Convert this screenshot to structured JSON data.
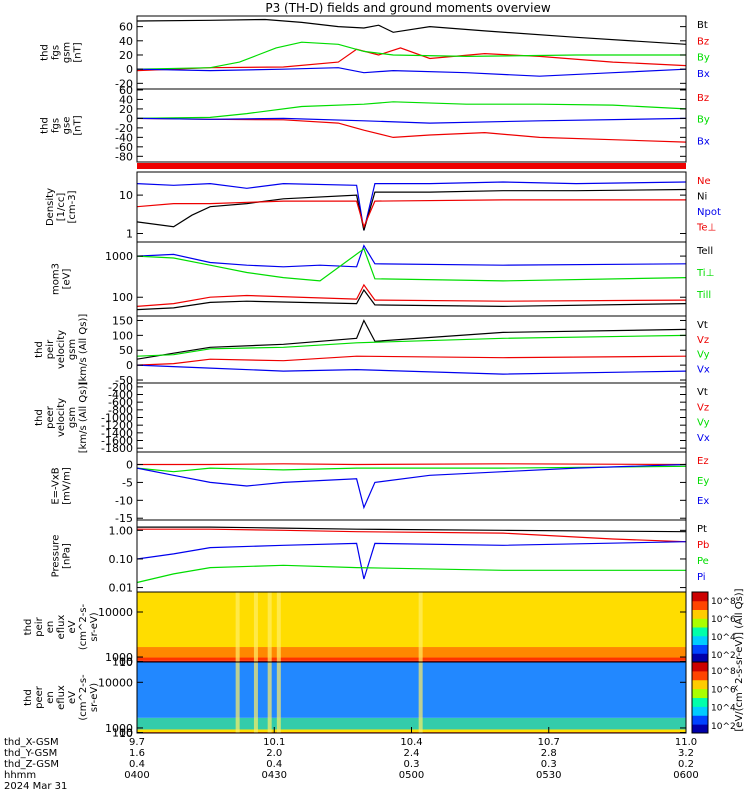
{
  "title": "P3 (TH-D) fields and ground moments overview",
  "colors": {
    "black": "#000000",
    "red": "#ee0000",
    "green": "#00dd00",
    "blue": "#0000ee"
  },
  "chart_data": [
    {
      "type": "line",
      "ylabel": [
        "thd",
        "fgs",
        "gsm",
        "[nT]"
      ],
      "yticks": [
        -20,
        0,
        20,
        40,
        60
      ],
      "ylim": [
        -28,
        75
      ],
      "legend": [
        {
          "name": "Bt",
          "color": "black"
        },
        {
          "name": "Bz",
          "color": "red"
        },
        {
          "name": "By",
          "color": "green"
        },
        {
          "name": "Bx",
          "color": "blue"
        }
      ],
      "series": [
        {
          "name": "Bt",
          "color": "black",
          "x": [
            0,
            20,
            35,
            45,
            55,
            62,
            66,
            70,
            80,
            95,
            120,
            150
          ],
          "y": [
            68,
            69,
            70,
            66,
            60,
            58,
            62,
            52,
            60,
            54,
            45,
            35
          ]
        },
        {
          "name": "Bz",
          "color": "red",
          "x": [
            0,
            20,
            40,
            55,
            60,
            66,
            72,
            80,
            95,
            110,
            130,
            150
          ],
          "y": [
            -2,
            2,
            3,
            10,
            28,
            20,
            30,
            15,
            22,
            18,
            10,
            5
          ]
        },
        {
          "name": "By",
          "color": "green",
          "x": [
            0,
            20,
            28,
            33,
            38,
            45,
            55,
            62,
            70,
            90,
            120,
            150
          ],
          "y": [
            0,
            2,
            10,
            20,
            30,
            38,
            35,
            25,
            20,
            18,
            20,
            20
          ]
        },
        {
          "name": "Bx",
          "color": "blue",
          "x": [
            0,
            20,
            40,
            55,
            62,
            70,
            90,
            110,
            130,
            150
          ],
          "y": [
            0,
            -2,
            0,
            2,
            -5,
            -2,
            -5,
            -10,
            -5,
            0
          ]
        }
      ]
    },
    {
      "type": "line",
      "ylabel": [
        "thd",
        "fgs",
        "gse",
        "[nT]"
      ],
      "yticks": [
        -80,
        -60,
        -40,
        -20,
        0,
        20,
        40,
        60
      ],
      "ylim": [
        -92,
        62
      ],
      "legend": [
        {
          "name": "Bz",
          "color": "red"
        },
        {
          "name": "By",
          "color": "green"
        },
        {
          "name": "Bx",
          "color": "blue"
        }
      ],
      "series": [
        {
          "name": "Bz",
          "color": "red",
          "x": [
            0,
            20,
            40,
            55,
            62,
            70,
            80,
            95,
            110,
            130,
            150
          ],
          "y": [
            0,
            -2,
            -3,
            -10,
            -25,
            -40,
            -35,
            -30,
            -40,
            -45,
            -50
          ]
        },
        {
          "name": "By",
          "color": "green",
          "x": [
            0,
            20,
            30,
            45,
            62,
            70,
            90,
            110,
            130,
            150
          ],
          "y": [
            0,
            2,
            10,
            25,
            30,
            35,
            30,
            30,
            28,
            20
          ]
        },
        {
          "name": "Bx",
          "color": "blue",
          "x": [
            0,
            20,
            40,
            62,
            80,
            110,
            150
          ],
          "y": [
            0,
            -2,
            0,
            -5,
            -10,
            -5,
            0
          ]
        }
      ]
    },
    {
      "type": "line",
      "log": true,
      "ylabel": [
        "Density",
        "[1/cc]",
        "[cm-3]"
      ],
      "yticks": [
        1,
        10
      ],
      "yticklabels": [
        "1",
        "10"
      ],
      "ylim": [
        0.6,
        40
      ],
      "legend": [
        {
          "name": "Ne",
          "color": "red"
        },
        {
          "name": "Ni",
          "color": "black"
        },
        {
          "name": "Npot",
          "color": "blue"
        },
        {
          "name": "Te⊥",
          "color": "red"
        }
      ],
      "series": [
        {
          "name": "Npot",
          "color": "blue",
          "x": [
            0,
            10,
            20,
            30,
            40,
            60,
            62,
            65,
            80,
            100,
            120,
            150
          ],
          "y": [
            20,
            18,
            20,
            15,
            20,
            18,
            1.2,
            20,
            20,
            22,
            20,
            22
          ]
        },
        {
          "name": "Ni",
          "color": "black",
          "x": [
            0,
            10,
            15,
            20,
            30,
            40,
            60,
            62,
            65,
            80,
            100,
            120,
            150
          ],
          "y": [
            2,
            1.5,
            3,
            5,
            6,
            8,
            10,
            1.2,
            12,
            12,
            13,
            13,
            14
          ]
        },
        {
          "name": "Ne",
          "color": "red",
          "x": [
            0,
            10,
            20,
            40,
            60,
            62,
            65,
            100,
            150
          ],
          "y": [
            5,
            6,
            6,
            7,
            7,
            1.5,
            7,
            7.5,
            7.5
          ]
        }
      ]
    },
    {
      "type": "line",
      "log": true,
      "ylabel": [
        "mom3",
        "[eV]"
      ],
      "yticks": [
        100,
        1000
      ],
      "yticklabels": [
        "100",
        "1000"
      ],
      "ylim": [
        35,
        2200
      ],
      "legend": [
        {
          "name": "Tell",
          "color": "black"
        },
        {
          "name": "Ti⊥",
          "color": "green"
        },
        {
          "name": "Till",
          "color": "green"
        }
      ],
      "series": [
        {
          "name": "Ti⊥",
          "color": "blue",
          "x": [
            0,
            10,
            20,
            30,
            40,
            50,
            60,
            62,
            65,
            100,
            150
          ],
          "y": [
            1000,
            1100,
            700,
            600,
            550,
            600,
            550,
            1800,
            650,
            600,
            650
          ]
        },
        {
          "name": "Till",
          "color": "green",
          "x": [
            0,
            10,
            20,
            30,
            40,
            50,
            62,
            65,
            100,
            150
          ],
          "y": [
            1000,
            900,
            600,
            400,
            300,
            250,
            1500,
            280,
            250,
            300
          ]
        },
        {
          "name": "Te⊥",
          "color": "red",
          "x": [
            0,
            10,
            20,
            30,
            60,
            62,
            65,
            100,
            150
          ],
          "y": [
            60,
            70,
            100,
            110,
            90,
            200,
            85,
            80,
            85
          ]
        },
        {
          "name": "Tell",
          "color": "black",
          "x": [
            0,
            10,
            20,
            30,
            60,
            62,
            65,
            100,
            150
          ],
          "y": [
            50,
            55,
            75,
            80,
            70,
            150,
            65,
            60,
            70
          ]
        }
      ]
    },
    {
      "type": "line",
      "ylabel": [
        "thd",
        "peir",
        "velocity",
        "gsm",
        "[km/s (All Qs)]"
      ],
      "yticks": [
        -50,
        0,
        50,
        100,
        150
      ],
      "ylim": [
        -60,
        165
      ],
      "legend": [
        {
          "name": "Vt",
          "color": "black"
        },
        {
          "name": "Vz",
          "color": "red"
        },
        {
          "name": "Vy",
          "color": "green"
        },
        {
          "name": "Vx",
          "color": "blue"
        }
      ],
      "series": [
        {
          "name": "Vt",
          "color": "black",
          "x": [
            0,
            10,
            20,
            40,
            60,
            62,
            65,
            100,
            150
          ],
          "y": [
            20,
            40,
            60,
            70,
            90,
            150,
            80,
            110,
            120
          ]
        },
        {
          "name": "Vy",
          "color": "green",
          "x": [
            0,
            10,
            20,
            40,
            60,
            100,
            150
          ],
          "y": [
            30,
            35,
            55,
            60,
            75,
            90,
            100
          ]
        },
        {
          "name": "Vz",
          "color": "red",
          "x": [
            0,
            10,
            20,
            40,
            60,
            100,
            150
          ],
          "y": [
            0,
            5,
            20,
            15,
            30,
            25,
            30
          ]
        },
        {
          "name": "Vx",
          "color": "blue",
          "x": [
            0,
            10,
            20,
            40,
            60,
            100,
            150
          ],
          "y": [
            0,
            -5,
            -10,
            -20,
            -15,
            -30,
            -20
          ]
        }
      ]
    },
    {
      "type": "line",
      "ylabel": [
        "thd",
        "peer",
        "velocity",
        "gsm",
        "[km/s (All Qs)]"
      ],
      "yticks": [
        -1800,
        -1600,
        -1400,
        -1200,
        -1000,
        -800,
        -600,
        -400,
        -200
      ],
      "ylim": [
        -1900,
        -100
      ],
      "legend": [
        {
          "name": "Vt",
          "color": "black"
        },
        {
          "name": "Vz",
          "color": "red"
        },
        {
          "name": "Vy",
          "color": "green"
        },
        {
          "name": "Vx",
          "color": "blue"
        }
      ],
      "series": []
    },
    {
      "type": "line",
      "ylabel": [
        "E=-VxB",
        "[mV/m]"
      ],
      "yticks": [
        -15,
        -10,
        -5,
        0
      ],
      "ylim": [
        -15.5,
        3.5
      ],
      "legend": [
        {
          "name": "Ez",
          "color": "red"
        },
        {
          "name": "Ey",
          "color": "green"
        },
        {
          "name": "Ex",
          "color": "blue"
        }
      ],
      "series": [
        {
          "name": "Ey",
          "color": "green",
          "x": [
            0,
            10,
            20,
            40,
            60,
            100,
            150
          ],
          "y": [
            -1,
            -2,
            -1,
            -1.5,
            -1,
            -1,
            -0.5
          ]
        },
        {
          "name": "Ez",
          "color": "red",
          "x": [
            0,
            20,
            40,
            60,
            100,
            150
          ],
          "y": [
            0,
            0,
            0.2,
            0,
            0.2,
            0
          ]
        },
        {
          "name": "Ex",
          "color": "blue",
          "x": [
            0,
            10,
            20,
            30,
            40,
            60,
            62,
            65,
            80,
            100,
            120,
            150
          ],
          "y": [
            -1,
            -3,
            -5,
            -6,
            -5,
            -4,
            -12,
            -5,
            -3,
            -2,
            -1,
            0
          ]
        }
      ]
    },
    {
      "type": "line",
      "log": true,
      "ylabel": [
        "Pressure",
        "[nPa]"
      ],
      "yticks": [
        0.01,
        0.1,
        1
      ],
      "yticklabels": [
        "0.01",
        "0.10",
        "1.00"
      ],
      "ylim": [
        0.007,
        2.3
      ],
      "legend": [
        {
          "name": "Pt",
          "color": "black"
        },
        {
          "name": "Pb",
          "color": "red"
        },
        {
          "name": "Pe",
          "color": "green"
        },
        {
          "name": "Pi",
          "color": "blue"
        }
      ],
      "series": [
        {
          "name": "Pt",
          "color": "black",
          "x": [
            0,
            20,
            40,
            60,
            100,
            150
          ],
          "y": [
            1.3,
            1.3,
            1.2,
            1.1,
            1.0,
            0.9
          ]
        },
        {
          "name": "Pb",
          "color": "red",
          "x": [
            0,
            20,
            40,
            60,
            100,
            130,
            150
          ],
          "y": [
            1.1,
            1.1,
            1.0,
            0.9,
            0.8,
            0.5,
            0.4
          ]
        },
        {
          "name": "Pi",
          "color": "blue",
          "x": [
            0,
            10,
            20,
            40,
            60,
            62,
            65,
            100,
            150
          ],
          "y": [
            0.1,
            0.15,
            0.25,
            0.3,
            0.35,
            0.02,
            0.35,
            0.3,
            0.4
          ]
        },
        {
          "name": "Pe",
          "color": "green",
          "x": [
            0,
            10,
            20,
            40,
            60,
            100,
            150
          ],
          "y": [
            0.015,
            0.03,
            0.05,
            0.06,
            0.05,
            0.04,
            0.04
          ]
        }
      ]
    },
    {
      "type": "heatmap",
      "ylabel": [
        "thd",
        "peir",
        "en",
        "eflux",
        "eV",
        "(cm^2-s-",
        "sr-eV)"
      ],
      "yticks": [
        10,
        100,
        1000,
        10000
      ],
      "yticklabels": [
        "10",
        "100",
        "1000",
        "10000"
      ],
      "ylim": [
        5,
        14000
      ],
      "colorbar": {
        "labels": [
          "10^2",
          "10^4",
          "10^6",
          "10^8"
        ]
      }
    },
    {
      "type": "heatmap",
      "ylabel": [
        "thd",
        "peer",
        "en",
        "eflux",
        "eV",
        "(cm^2-s-",
        "sr-eV)"
      ],
      "yticks": [
        10,
        100,
        1000,
        10000
      ],
      "yticklabels": [
        "10",
        "100",
        "1000",
        "10000"
      ],
      "ylim": [
        5,
        14000
      ],
      "colorbar": {
        "labels": [
          "10^2",
          "10^4",
          "10^6",
          "10^8"
        ]
      }
    }
  ],
  "colorbar_label": "[eV/(cm^2-s-sr-eV)] (All Qs)]",
  "xaxis": {
    "ticks": [
      0,
      30,
      60,
      90,
      120
    ],
    "xlim": [
      0,
      120
    ],
    "rows": [
      {
        "label": "thd_X-GSM",
        "values": [
          "9.7",
          "10.1",
          "10.4",
          "10.7",
          "11.0"
        ]
      },
      {
        "label": "thd_Y-GSM",
        "values": [
          "1.6",
          "2.0",
          "2.4",
          "2.8",
          "3.2"
        ]
      },
      {
        "label": "thd_Z-GSM",
        "values": [
          "0.4",
          "0.4",
          "0.3",
          "0.3",
          "0.2"
        ]
      },
      {
        "label": "hhmm",
        "values": [
          "0400",
          "0430",
          "0500",
          "0530",
          "0600"
        ]
      }
    ],
    "date": "2024 Mar 31"
  }
}
